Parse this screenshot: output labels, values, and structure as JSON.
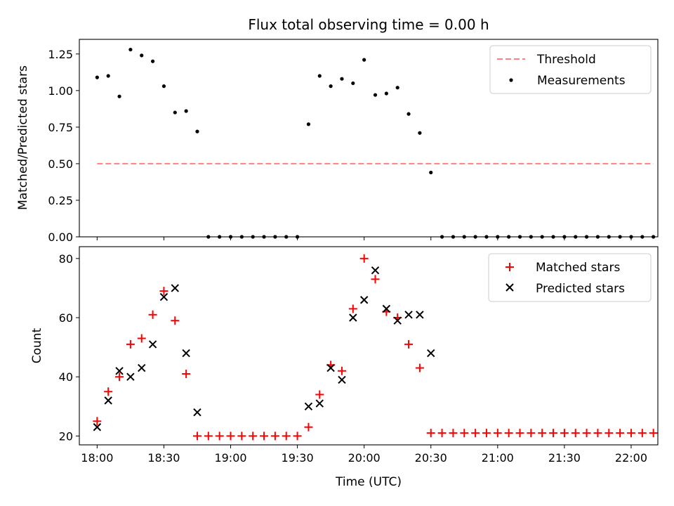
{
  "chart_data": [
    {
      "type": "scatter",
      "title": "Flux total observing time = 0.00 h",
      "xlabel": "",
      "ylabel": "Matched/Predicted stars",
      "xlim": [
        "17:52",
        "22:12"
      ],
      "ylim": [
        0,
        1.35
      ],
      "xticks": [
        "18:00",
        "18:30",
        "19:00",
        "19:30",
        "20:00",
        "20:30",
        "21:00",
        "21:30",
        "22:00"
      ],
      "yticks": [
        "0.00",
        "0.25",
        "0.50",
        "0.75",
        "1.00",
        "1.25"
      ],
      "legend_position": "top-right",
      "threshold": {
        "name": "Threshold",
        "color": "#ff8080",
        "x": [
          "18:00",
          "22:10"
        ],
        "y": 0.5
      },
      "series": [
        {
          "name": "Measurements",
          "color": "#000000",
          "x": [
            "18:00",
            "18:05",
            "18:10",
            "18:15",
            "18:20",
            "18:25",
            "18:30",
            "18:35",
            "18:40",
            "18:45",
            "18:50",
            "18:55",
            "19:00",
            "19:05",
            "19:10",
            "19:15",
            "19:20",
            "19:25",
            "19:30",
            "19:35",
            "19:40",
            "19:45",
            "19:50",
            "19:55",
            "20:00",
            "20:05",
            "20:10",
            "20:15",
            "20:20",
            "20:25",
            "20:30",
            "20:35",
            "20:40",
            "20:45",
            "20:50",
            "20:55",
            "21:00",
            "21:05",
            "21:10",
            "21:15",
            "21:20",
            "21:25",
            "21:30",
            "21:35",
            "21:40",
            "21:45",
            "21:50",
            "21:55",
            "22:00",
            "22:05",
            "22:10"
          ],
          "y": [
            1.09,
            1.1,
            0.96,
            1.28,
            1.24,
            1.2,
            1.03,
            0.85,
            0.86,
            0.72,
            0,
            0,
            0,
            0,
            0,
            0,
            0,
            0,
            0,
            0.77,
            1.1,
            1.03,
            1.08,
            1.05,
            1.21,
            0.97,
            0.98,
            1.02,
            0.84,
            0.71,
            0.44,
            0,
            0,
            0,
            0,
            0,
            0,
            0,
            0,
            0,
            0,
            0,
            0,
            0,
            0,
            0,
            0,
            0,
            0,
            0,
            0
          ]
        }
      ]
    },
    {
      "type": "scatter",
      "title": "",
      "xlabel": "Time (UTC)",
      "ylabel": "Count",
      "xlim": [
        "17:52",
        "22:12"
      ],
      "ylim": [
        17,
        84
      ],
      "xticks": [
        "18:00",
        "18:30",
        "19:00",
        "19:30",
        "20:00",
        "20:30",
        "21:00",
        "21:30",
        "22:00"
      ],
      "yticks": [
        "20",
        "40",
        "60",
        "80"
      ],
      "legend_position": "top-right",
      "series": [
        {
          "name": "Matched stars",
          "marker": "plus",
          "color": "#ff0000",
          "x": [
            "18:00",
            "18:05",
            "18:10",
            "18:15",
            "18:20",
            "18:25",
            "18:30",
            "18:35",
            "18:40",
            "18:45",
            "18:50",
            "18:55",
            "19:00",
            "19:05",
            "19:10",
            "19:15",
            "19:20",
            "19:25",
            "19:30",
            "19:35",
            "19:40",
            "19:45",
            "19:50",
            "19:55",
            "20:00",
            "20:05",
            "20:10",
            "20:15",
            "20:20",
            "20:25",
            "20:30",
            "20:35",
            "20:40",
            "20:45",
            "20:50",
            "20:55",
            "21:00",
            "21:05",
            "21:10",
            "21:15",
            "21:20",
            "21:25",
            "21:30",
            "21:35",
            "21:40",
            "21:45",
            "21:50",
            "21:55",
            "22:00",
            "22:05",
            "22:10"
          ],
          "y": [
            25,
            35,
            40,
            51,
            53,
            61,
            69,
            59,
            41,
            20,
            20,
            20,
            20,
            20,
            20,
            20,
            20,
            20,
            20,
            23,
            34,
            44,
            42,
            63,
            80,
            73,
            62,
            60,
            51,
            43,
            21,
            21,
            21,
            21,
            21,
            21,
            21,
            21,
            21,
            21,
            21,
            21,
            21,
            21,
            21,
            21,
            21,
            21,
            21,
            21,
            21
          ]
        },
        {
          "name": "Predicted stars",
          "marker": "x",
          "color": "#000000",
          "x": [
            "18:00",
            "18:05",
            "18:10",
            "18:15",
            "18:20",
            "18:25",
            "18:30",
            "18:35",
            "18:40",
            "18:45",
            "19:35",
            "19:40",
            "19:45",
            "19:50",
            "19:55",
            "20:00",
            "20:05",
            "20:10",
            "20:15",
            "20:20",
            "20:25",
            "20:30"
          ],
          "y": [
            23,
            32,
            42,
            40,
            43,
            51,
            67,
            70,
            48,
            28,
            30,
            31,
            43,
            39,
            60,
            66,
            76,
            63,
            59,
            61,
            61,
            48
          ]
        }
      ]
    }
  ]
}
